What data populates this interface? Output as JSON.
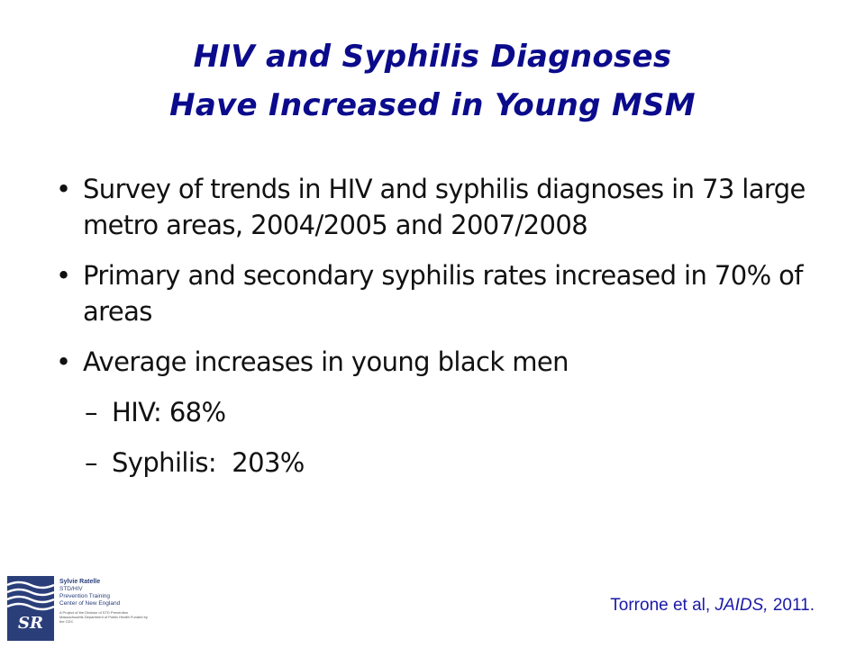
{
  "slide": {
    "title_line1": "HIV and Syphilis Diagnoses",
    "title_line2": "Have Increased in Young MSM",
    "bullets": [
      {
        "marker": "•",
        "text": "Survey of trends in HIV and syphilis diagnoses in 73 large metro areas, 2004/2005 and 2007/2008"
      },
      {
        "marker": "•",
        "text": "Primary and secondary syphilis rates increased in 70% of areas"
      },
      {
        "marker": "•",
        "text": "Average increases in young black men"
      }
    ],
    "sub_bullets": [
      {
        "marker": "–",
        "text": "HIV: 68%"
      },
      {
        "marker": "–",
        "text": "Syphilis:  203%"
      }
    ],
    "citation": {
      "authors": "Torrone et al, ",
      "journal": "JAIDS,",
      "year": " 2011."
    }
  },
  "logo": {
    "name": "Sylvie Ratelle",
    "line1": "STD/HIV",
    "line2": "Prevention Training",
    "line3": "Center of New England",
    "small_text": "A Project of the Division of STD Prevention Massachusetts Department of Public Health Funded by the CDC",
    "mark_label": "SR",
    "brand_color": "#2a3f7a",
    "icon": "sylvie-ratelle-logo-icon"
  },
  "colors": {
    "title": "#0b0b8c",
    "body": "#111111",
    "citation": "#1a1aa8"
  }
}
